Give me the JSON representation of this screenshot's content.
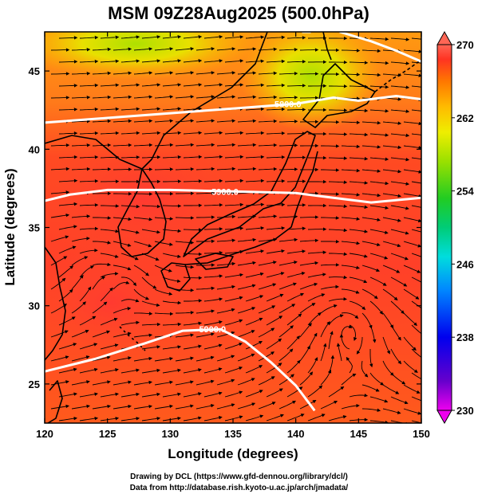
{
  "title": "MSM 09Z28Aug2025 (500.0hPa)",
  "x_axis": {
    "label": "Longitude (degrees)",
    "ticks": [
      {
        "value": 120,
        "label": "120"
      },
      {
        "value": 125,
        "label": "125"
      },
      {
        "value": 130,
        "label": "130"
      },
      {
        "value": 135,
        "label": "135"
      },
      {
        "value": 140,
        "label": "140"
      },
      {
        "value": 145,
        "label": "145"
      },
      {
        "value": 150,
        "label": "150"
      }
    ]
  },
  "y_axis": {
    "label": "Latitude  (degrees)",
    "ticks": [
      {
        "value": 25,
        "label": "25"
      },
      {
        "value": 30,
        "label": "30"
      },
      {
        "value": 35,
        "label": "35"
      },
      {
        "value": 40,
        "label": "40"
      },
      {
        "value": 45,
        "label": "45"
      }
    ]
  },
  "extent": {
    "lon": [
      120,
      150
    ],
    "lat": [
      22.5,
      47.5
    ]
  },
  "colorbar": {
    "range": [
      230,
      270
    ],
    "labels": [
      {
        "value": 270,
        "label": "270"
      },
      {
        "value": 262,
        "label": "262"
      },
      {
        "value": 254,
        "label": "254"
      },
      {
        "value": 246,
        "label": "246"
      },
      {
        "value": 238,
        "label": "238"
      },
      {
        "value": 230,
        "label": "230"
      }
    ],
    "colors": [
      "#ee00ee",
      "#6600cc",
      "#0000ee",
      "#0088ff",
      "#00dddd",
      "#00cc77",
      "#22cc22",
      "#99e000",
      "#eeee00",
      "#ffbb00",
      "#ff7700",
      "#ff3322",
      "#ff6655"
    ]
  },
  "contours": [
    {
      "label": "5800.0",
      "points": [
        [
          120,
          41.7
        ],
        [
          125,
          42.0
        ],
        [
          130,
          42.3
        ],
        [
          135,
          42.6
        ],
        [
          140,
          42.9
        ],
        [
          143,
          43.3
        ],
        [
          145,
          43.1
        ],
        [
          148,
          43.4
        ],
        [
          150,
          43.2
        ]
      ]
    },
    {
      "label": "5900.0",
      "points": [
        [
          120,
          36.7
        ],
        [
          122,
          37.1
        ],
        [
          125,
          37.4
        ],
        [
          130,
          37.4
        ],
        [
          135,
          37.3
        ],
        [
          140,
          37.2
        ],
        [
          143,
          36.9
        ],
        [
          146,
          36.6
        ],
        [
          150,
          36.9
        ]
      ]
    },
    {
      "label": "5900.0",
      "points": [
        [
          120,
          25.8
        ],
        [
          124,
          26.6
        ],
        [
          128,
          27.6
        ],
        [
          131,
          28.4
        ],
        [
          134,
          28.5
        ],
        [
          136,
          27.7
        ],
        [
          138,
          26.4
        ],
        [
          140,
          24.9
        ],
        [
          141.5,
          23.3
        ]
      ]
    },
    {
      "label": "",
      "points": [
        [
          143.5,
          47.5
        ],
        [
          146,
          46.9
        ],
        [
          148,
          46.3
        ],
        [
          150,
          45.6
        ]
      ]
    },
    {
      "label": "",
      "points": [
        [
          140.5,
          47.5
        ],
        [
          141.2,
          47.5
        ]
      ]
    }
  ]
}
